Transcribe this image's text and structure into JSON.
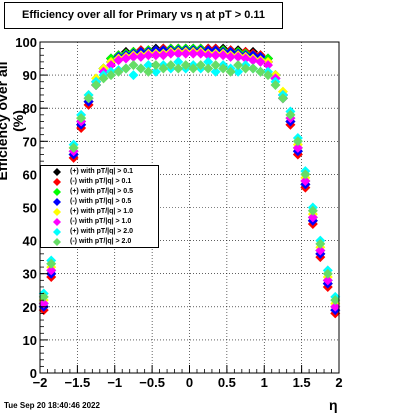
{
  "title": "Efficiency over all for Primary vs    η at pT > 0.11",
  "timestamp": "Tue Sep 20 18:40:46 2022",
  "chart_data": {
    "type": "scatter",
    "title": "Efficiency over all for Primary vs    η at pT > 0.11",
    "xlabel": "η",
    "ylabel": "Efficiency over all (%)",
    "xlim": [
      -2,
      2
    ],
    "ylim": [
      0,
      100
    ],
    "x_ticks": [
      "−2",
      "−1.5",
      "−1",
      "−0.5",
      "0",
      "0.5",
      "1",
      "1.5",
      "2"
    ],
    "y_ticks": [
      "0",
      "10",
      "20",
      "30",
      "40",
      "50",
      "60",
      "70",
      "80",
      "90",
      "100"
    ],
    "grid": true,
    "legend_position": "left-middle",
    "x": [
      -1.95,
      -1.85,
      -1.75,
      -1.65,
      -1.55,
      -1.45,
      -1.35,
      -1.25,
      -1.15,
      -1.05,
      -0.95,
      -0.85,
      -0.75,
      -0.65,
      -0.55,
      -0.45,
      -0.35,
      -0.25,
      -0.15,
      -0.05,
      0.05,
      0.15,
      0.25,
      0.35,
      0.45,
      0.55,
      0.65,
      0.75,
      0.85,
      0.95,
      1.05,
      1.15,
      1.25,
      1.35,
      1.45,
      1.55,
      1.65,
      1.75,
      1.85,
      1.95
    ],
    "series": [
      {
        "name": "(+) with pT/|q| > 0.1",
        "color": "#000000",
        "marker": "diamond",
        "values": [
          20,
          30,
          42,
          55,
          66,
          75,
          82,
          88,
          92,
          95,
          96,
          97,
          97,
          97.5,
          97.5,
          98,
          98,
          98,
          98,
          98,
          98,
          98,
          98,
          98,
          98,
          97.5,
          97.5,
          97,
          97,
          96,
          95,
          90,
          84,
          76,
          67,
          57,
          46,
          36,
          27,
          19
        ]
      },
      {
        "name": "(-) with pT/|q| > 0.1",
        "color": "#ff0000",
        "marker": "diamond",
        "values": [
          19,
          29,
          41,
          54,
          65,
          74,
          81,
          87,
          91,
          94,
          96,
          96.5,
          97,
          97.5,
          97.5,
          97.5,
          98,
          98,
          98,
          97.5,
          97.5,
          98,
          98,
          98,
          97.5,
          97.5,
          97,
          97,
          96.5,
          96,
          94,
          89,
          83,
          75,
          66,
          56,
          45,
          35,
          26,
          18
        ]
      },
      {
        "name": "(+) with pT/|q| > 0.5",
        "color": "#00ff00",
        "marker": "diamond",
        "values": [
          21,
          31,
          43,
          56,
          67,
          76,
          83,
          88,
          92,
          95,
          96,
          96.5,
          97,
          97,
          97.5,
          97.5,
          97.5,
          98,
          98,
          98,
          98,
          98,
          97.5,
          97.5,
          97.5,
          97,
          97,
          96.5,
          96,
          95.5,
          95,
          90,
          84,
          77,
          68,
          58,
          47,
          37,
          28,
          20
        ]
      },
      {
        "name": "(-) with pT/|q| > 0.5",
        "color": "#0000ff",
        "marker": "diamond",
        "values": [
          20,
          30,
          42,
          55,
          66,
          75,
          82,
          87,
          91,
          94,
          95.5,
          96,
          96.5,
          97,
          97,
          97.5,
          97.5,
          97.5,
          97.5,
          97.5,
          97.5,
          97.5,
          97.5,
          97.5,
          97,
          97,
          96.5,
          96,
          96,
          95.5,
          94,
          89,
          83,
          76,
          67,
          57,
          46,
          36,
          27,
          19
        ]
      },
      {
        "name": "(+) with pT/|q| > 1.0",
        "color": "#ffff00",
        "marker": "diamond",
        "values": [
          22,
          32,
          44,
          57,
          68,
          77,
          84,
          89,
          92,
          94,
          95,
          95.5,
          96,
          96,
          96.5,
          96.5,
          96.5,
          97,
          97,
          97,
          97,
          97,
          96.5,
          96.5,
          96.5,
          96,
          96,
          95.5,
          95,
          94.5,
          94,
          90,
          85,
          78,
          69,
          59,
          48,
          38,
          29,
          21
        ]
      },
      {
        "name": "(-) with pT/|q| > 1.0",
        "color": "#ff00ff",
        "marker": "diamond",
        "values": [
          21,
          31,
          43,
          56,
          67,
          76,
          83,
          88,
          91,
          93,
          94.5,
          95,
          95.5,
          95.5,
          96,
          96,
          96,
          96.5,
          96.5,
          96.5,
          96.5,
          96.5,
          96,
          96,
          96,
          95.5,
          95.5,
          95,
          94.5,
          94,
          93,
          89,
          84,
          77,
          68,
          58,
          47,
          37,
          28,
          20
        ]
      },
      {
        "name": "(+) with pT/|q| > 2.0",
        "color": "#00ffff",
        "marker": "diamond",
        "values": [
          24,
          34,
          46,
          58,
          69,
          78,
          84,
          88,
          90,
          91,
          91.5,
          92,
          90,
          92,
          93,
          91,
          93,
          92,
          94,
          92,
          93,
          92,
          94,
          91,
          93,
          92,
          91,
          93,
          92,
          91,
          91,
          88,
          84,
          79,
          71,
          61,
          50,
          40,
          31,
          23
        ]
      },
      {
        "name": "(-) with pT/|q| > 2.0",
        "color": "#66dd66",
        "marker": "diamond",
        "values": [
          23,
          33,
          45,
          57,
          68,
          77,
          83,
          87,
          89,
          90,
          91,
          92,
          93,
          92,
          91,
          93,
          92,
          93,
          92,
          93,
          92,
          93,
          92,
          93,
          92,
          91,
          93,
          92,
          92,
          91,
          90,
          87,
          83,
          78,
          70,
          60,
          49,
          39,
          30,
          22
        ]
      }
    ]
  }
}
